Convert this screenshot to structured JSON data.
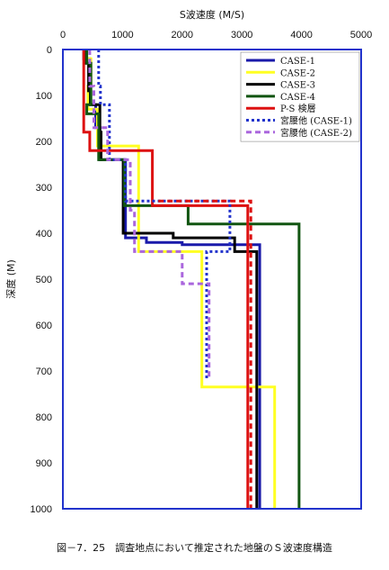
{
  "chart_data": {
    "type": "line",
    "title": "",
    "xlabel": "S波速度 (M/S)",
    "ylabel": "深度 (M)",
    "xlim": [
      0,
      5000
    ],
    "ylim": [
      1000,
      0
    ],
    "x_ticks": [
      "0",
      "1000",
      "2000",
      "3000",
      "4000",
      "5000"
    ],
    "y_ticks": [
      "0",
      "100",
      "200",
      "300",
      "400",
      "500",
      "600",
      "700",
      "800",
      "900",
      "1000"
    ],
    "grid": false,
    "legend_position": "top-right",
    "colors": {
      "frame": "#2233cc"
    },
    "series": [
      {
        "name": "CASE-1",
        "color": "#1a1aaa",
        "dash": "solid",
        "points": [
          [
            350,
            0
          ],
          [
            350,
            20
          ],
          [
            450,
            20
          ],
          [
            450,
            80
          ],
          [
            420,
            80
          ],
          [
            420,
            120
          ],
          [
            550,
            120
          ],
          [
            550,
            170
          ],
          [
            620,
            170
          ],
          [
            620,
            240
          ],
          [
            1050,
            240
          ],
          [
            1050,
            410
          ],
          [
            1400,
            410
          ],
          [
            1400,
            420
          ],
          [
            2000,
            420
          ],
          [
            2000,
            425
          ],
          [
            3300,
            425
          ],
          [
            3300,
            1000
          ]
        ]
      },
      {
        "name": "CASE-2",
        "color": "#ffff22",
        "dash": "solid",
        "points": [
          [
            380,
            0
          ],
          [
            380,
            20
          ],
          [
            470,
            20
          ],
          [
            470,
            80
          ],
          [
            420,
            80
          ],
          [
            420,
            130
          ],
          [
            580,
            130
          ],
          [
            580,
            210
          ],
          [
            1270,
            210
          ],
          [
            1270,
            440
          ],
          [
            2330,
            440
          ],
          [
            2330,
            735
          ],
          [
            3550,
            735
          ],
          [
            3550,
            1000
          ]
        ]
      },
      {
        "name": "CASE-3",
        "color": "#000000",
        "dash": "solid",
        "points": [
          [
            360,
            0
          ],
          [
            360,
            30
          ],
          [
            430,
            30
          ],
          [
            430,
            90
          ],
          [
            460,
            90
          ],
          [
            460,
            120
          ],
          [
            620,
            120
          ],
          [
            620,
            180
          ],
          [
            640,
            180
          ],
          [
            640,
            240
          ],
          [
            1010,
            240
          ],
          [
            1010,
            400
          ],
          [
            1850,
            400
          ],
          [
            1850,
            410
          ],
          [
            2880,
            410
          ],
          [
            2880,
            440
          ],
          [
            3250,
            440
          ],
          [
            3250,
            1000
          ]
        ]
      },
      {
        "name": "CASE-4",
        "color": "#115511",
        "dash": "solid",
        "points": [
          [
            400,
            0
          ],
          [
            400,
            30
          ],
          [
            470,
            30
          ],
          [
            470,
            120
          ],
          [
            400,
            120
          ],
          [
            400,
            140
          ],
          [
            600,
            140
          ],
          [
            600,
            240
          ],
          [
            1030,
            240
          ],
          [
            1030,
            340
          ],
          [
            2100,
            340
          ],
          [
            2100,
            380
          ],
          [
            3960,
            380
          ],
          [
            3960,
            1000
          ]
        ]
      },
      {
        "name": "P-S 検層",
        "color": "#dd1111",
        "dash": "solid",
        "points": [
          [
            350,
            0
          ],
          [
            350,
            180
          ],
          [
            450,
            180
          ],
          [
            450,
            220
          ],
          [
            1500,
            220
          ],
          [
            1500,
            340
          ],
          [
            3100,
            340
          ],
          [
            3100,
            1000
          ]
        ]
      },
      {
        "name": "宮腰他 (CASE-1)",
        "color": "#2233cc",
        "dash": "dotted",
        "points": [
          [
            600,
            0
          ],
          [
            600,
            80
          ],
          [
            630,
            80
          ],
          [
            630,
            120
          ],
          [
            780,
            120
          ],
          [
            780,
            240
          ],
          [
            1050,
            240
          ],
          [
            1050,
            330
          ],
          [
            2800,
            330
          ],
          [
            2800,
            440
          ],
          [
            2410,
            440
          ],
          [
            2410,
            720
          ]
        ]
      },
      {
        "name": "宮腰他 (CASE-2)",
        "color": "#aa66dd",
        "dash": "dashed",
        "points": [
          [
            450,
            0
          ],
          [
            450,
            80
          ],
          [
            520,
            80
          ],
          [
            520,
            170
          ],
          [
            750,
            170
          ],
          [
            750,
            240
          ],
          [
            1130,
            240
          ],
          [
            1130,
            350
          ],
          [
            1200,
            350
          ],
          [
            1200,
            440
          ],
          [
            2000,
            440
          ],
          [
            2000,
            510
          ],
          [
            2450,
            510
          ],
          [
            2450,
            720
          ]
        ]
      },
      {
        "name": "",
        "color": "#dd1111",
        "dash": "dashed",
        "points": [
          [
            1600,
            330
          ],
          [
            3150,
            330
          ],
          [
            3150,
            1000
          ]
        ]
      }
    ]
  },
  "caption": "図－7．25　調査地点において推定された地盤のＳ波速度構造"
}
